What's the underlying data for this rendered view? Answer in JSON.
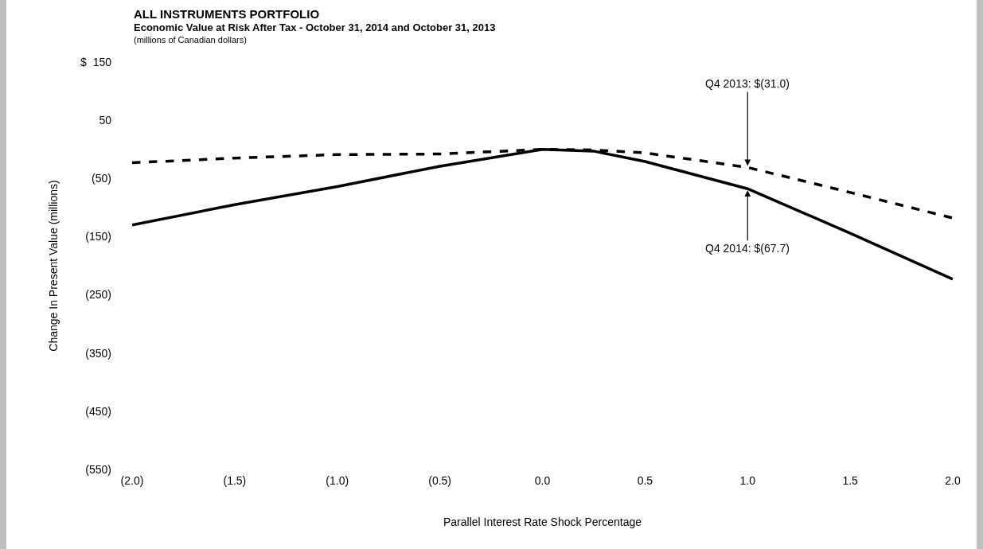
{
  "chart_data": {
    "type": "line",
    "title": "ALL INSTRUMENTS PORTFOLIO",
    "subtitle": "Economic Value at Risk After Tax - October 31, 2014 and October 31, 2013",
    "xlabel": "Parallel Interest Rate Shock Percentage",
    "ylabel": "Change In Present Value (millions)",
    "annotations": [
      "(millions of Canadian dollars)",
      {
        "text": "Q4 2013: $(31.0)",
        "x": 1.0,
        "y": -31.0
      },
      {
        "text": "Q4 2014: $(67.7)",
        "x": 1.0,
        "y": -67.7
      }
    ],
    "x": [
      -2.0,
      -1.5,
      -1.0,
      -0.5,
      0.0,
      0.25,
      0.5,
      1.0,
      1.5,
      2.0
    ],
    "series": [
      {
        "color": "#000000",
        "line_style": "solid",
        "values": [
          -130,
          -95,
          -64,
          -29,
          0,
          -3,
          -21,
          -67.7,
          -144,
          -223
        ]
      },
      {
        "color": "#000000",
        "line_style": "dashed",
        "values": [
          -23,
          -15,
          -9,
          -8,
          0,
          -1,
          -6,
          -31.0,
          -74,
          -118
        ]
      }
    ],
    "xlim": [
      -2.0,
      2.0
    ],
    "xticks": [
      {
        "value": -2,
        "label": "(2.0)"
      },
      {
        "value": -1.5,
        "label": "(1.5)"
      },
      {
        "value": -1,
        "label": "(1.0)"
      },
      {
        "value": -0.5,
        "label": "(0.5)"
      },
      {
        "value": 0,
        "label": "0.0"
      },
      {
        "value": 0.5,
        "label": "0.5"
      },
      {
        "value": 1,
        "label": "1.0"
      },
      {
        "value": 1.5,
        "label": "1.5"
      },
      {
        "value": 2,
        "label": "2.0"
      }
    ],
    "ylim": [
      -550,
      150
    ],
    "yticks": [
      {
        "value": 150,
        "label": "$  150"
      },
      50,
      {
        "value": -50,
        "label": "(50)"
      },
      {
        "value": -150,
        "label": "(150)"
      },
      {
        "value": -250,
        "label": "(250)"
      },
      {
        "value": -350,
        "label": "(350)"
      },
      {
        "value": -450,
        "label": "(450)"
      },
      {
        "value": -550,
        "label": "(550)"
      }
    ],
    "marker": "none"
  }
}
